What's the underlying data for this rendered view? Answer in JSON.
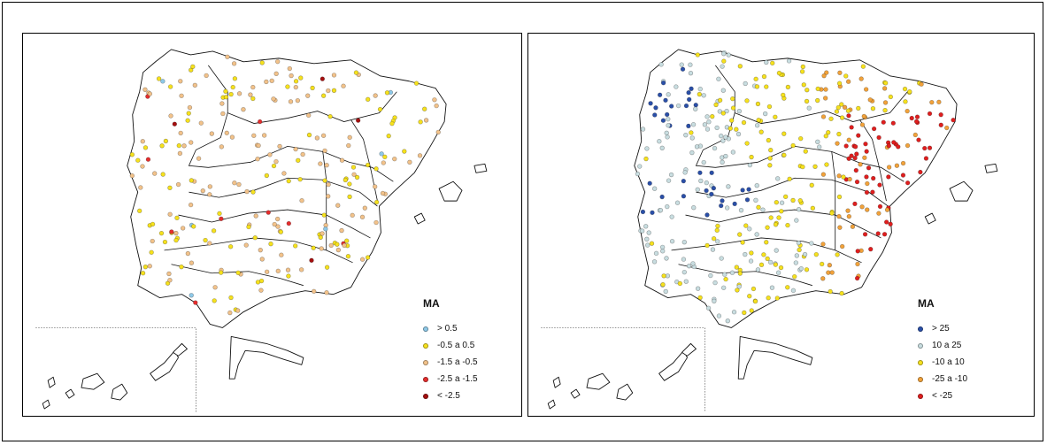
{
  "maps": [
    {
      "id": "left",
      "legend": {
        "title": "MA",
        "items": [
          {
            "label": "> 0.5",
            "color": "#8ec9e8"
          },
          {
            "label": "-0.5 a 0.5",
            "color": "#f6e11d"
          },
          {
            "label": "-1.5 a -0.5",
            "color": "#f2c28a"
          },
          {
            "label": "-2.5 a -1.5",
            "color": "#e52d2d"
          },
          {
            "label": "< -2.5",
            "color": "#a50f0f"
          }
        ]
      }
    },
    {
      "id": "right",
      "legend": {
        "title": "MA",
        "items": [
          {
            "label": "> 25",
            "color": "#2a4fa8"
          },
          {
            "label": "10 a 25",
            "color": "#c8dde0"
          },
          {
            "label": "-10 a 10",
            "color": "#f6e11d"
          },
          {
            "label": "-25 a -10",
            "color": "#f2a23a"
          },
          {
            "label": "< -25",
            "color": "#e01e1e"
          }
        ]
      }
    }
  ]
}
